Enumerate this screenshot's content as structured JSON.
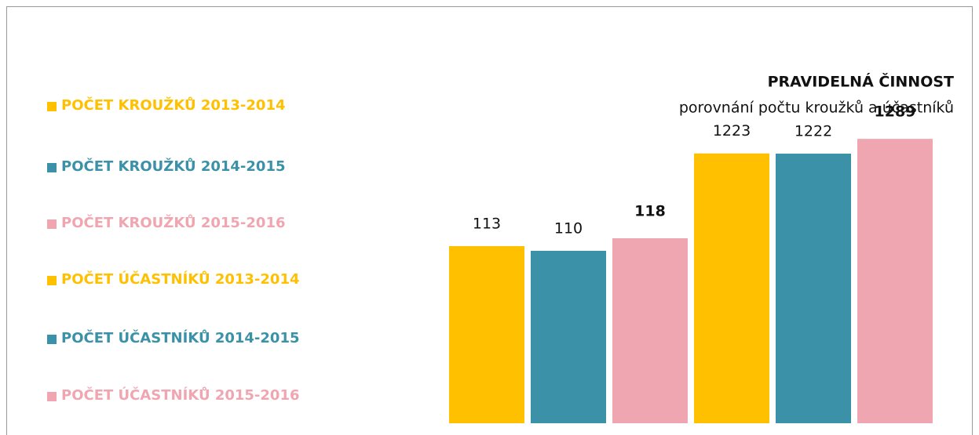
{
  "chart_data": {
    "type": "bar",
    "title": "PRAVIDELNÁ ČINNOST",
    "subtitle": "porovnání počtu kroužků a účastníků",
    "ylim": [
      0,
      190
    ],
    "y2lim": [
      0,
      1350
    ],
    "series": [
      {
        "name": "POČET KROUŽKŮ 2013-2014",
        "color": "#FFC000",
        "values": [
          113
        ],
        "axis": "y"
      },
      {
        "name": "POČET KROUŽKŮ 2014-2015",
        "color": "#3A91A8",
        "values": [
          110
        ],
        "axis": "y"
      },
      {
        "name": "POČET KROUŽKŮ 2015-2016",
        "color": "#F0A6B0",
        "values": [
          118
        ],
        "axis": "y",
        "label_bold": true
      },
      {
        "name": "POČET ÚČASTNÍKŮ 2013-2014",
        "color": "#FFC000",
        "values": [
          1223
        ],
        "axis": "y2"
      },
      {
        "name": "POČET ÚČASTNÍKŮ 2014-2015",
        "color": "#3A91A8",
        "values": [
          1222
        ],
        "axis": "y2"
      },
      {
        "name": "POČET ÚČASTNÍKŮ 2015-2016",
        "color": "#F0A6B0",
        "values": [
          1289
        ],
        "axis": "y2",
        "label_bold": true
      }
    ]
  }
}
